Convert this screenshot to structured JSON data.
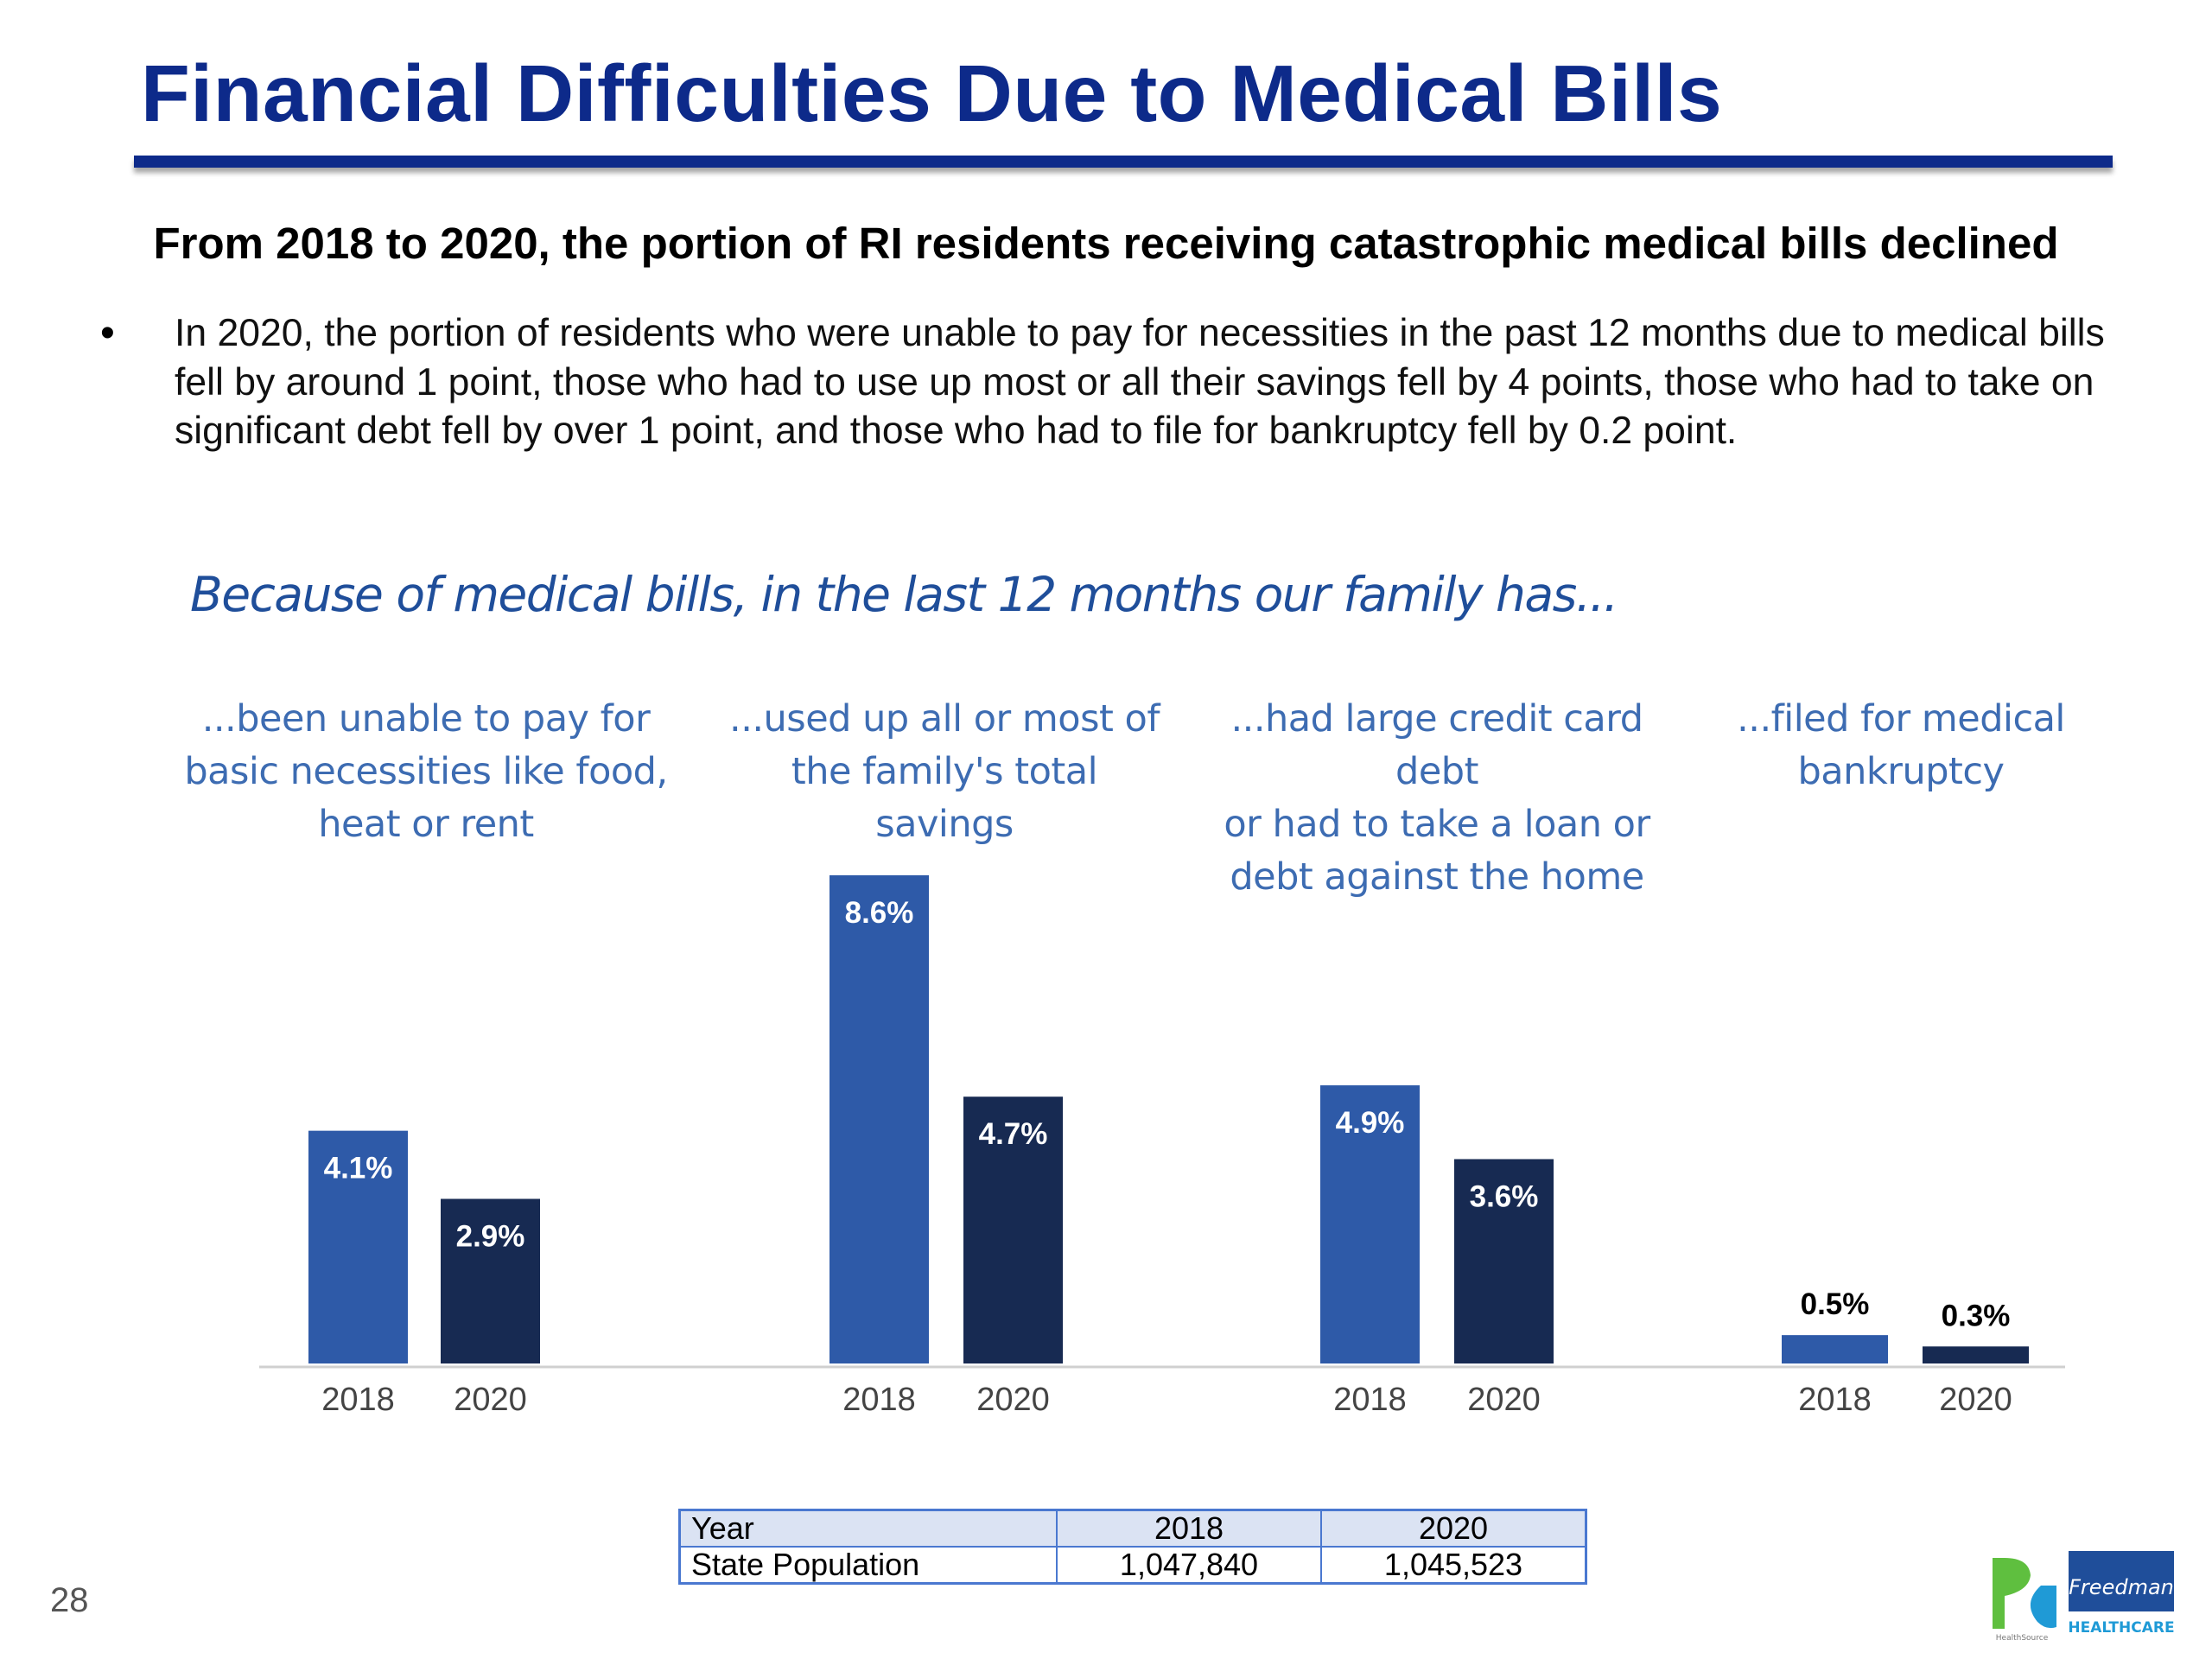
{
  "title": "Financial Difficulties Due to Medical Bills",
  "headline": "From 2018 to 2020, the portion of RI residents receiving catastrophic medical bills declined",
  "bullet": "In 2020, the portion of residents who were unable to pay for necessities in the past 12 months due to medical bills fell by around 1 point, those who had to use up most or all their savings fell by 4 points, those who had to take on significant debt fell by over 1 point, and those who had to file for bankruptcy fell by 0.2 point.",
  "chart_heading": "Because of medical bills, in the last 12 months our family has...",
  "chart_data": {
    "type": "bar",
    "categories": [
      "...been unable to pay for basic necessities like food, heat or rent",
      "...used up all or most of the family's total savings",
      "...had large credit card debt or had to take a loan or debt against the home",
      "...filed for medical bankruptcy"
    ],
    "category_lines": [
      [
        "...been unable to pay for",
        "basic necessities like food,",
        "heat or rent"
      ],
      [
        "...used up all or most of",
        "the family's total",
        "savings"
      ],
      [
        "...had large credit card debt",
        "or had to take a loan or",
        "debt against the home"
      ],
      [
        "...filed for medical",
        "bankruptcy"
      ]
    ],
    "series": [
      {
        "name": "2018",
        "values": [
          4.1,
          8.6,
          4.9,
          0.5
        ],
        "labels": [
          "4.1%",
          "8.6%",
          "4.9%",
          "0.5%"
        ]
      },
      {
        "name": "2020",
        "values": [
          2.9,
          4.7,
          3.6,
          0.3
        ],
        "labels": [
          "2.9%",
          "4.7%",
          "3.6%",
          "0.3%"
        ]
      }
    ],
    "unit": "%",
    "ylim": [
      0,
      8.6
    ],
    "grid": false,
    "colors": {
      "2018": "#2e5aa8",
      "2020": "#172a52",
      "label_inside": "#ffffff",
      "label_outside": "#000000",
      "axis_tick_text": "#444444",
      "baseline": "#d0d0d0"
    }
  },
  "population_table": {
    "header": [
      "Year",
      "2018",
      "2020"
    ],
    "rows": [
      [
        "State Population",
        "1,047,840",
        "1,045,523"
      ]
    ]
  },
  "page_number": "28",
  "logo": {
    "icon": "healthsource-freedman-healthcare-logo",
    "text_line1": "Freedman",
    "text_line2": "HEALTHCARE",
    "small_text": "HealthSource"
  }
}
